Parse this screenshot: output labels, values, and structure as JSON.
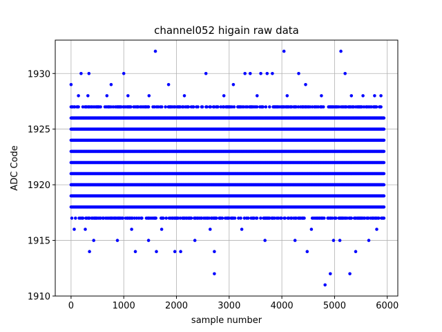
{
  "chart_data": {
    "type": "scatter",
    "title": "channel052 higain raw data",
    "xlabel": "sample number",
    "ylabel": "ADC Code",
    "xlim": [
      -300,
      6200
    ],
    "ylim": [
      1910,
      1933
    ],
    "xticks": [
      0,
      1000,
      2000,
      3000,
      4000,
      5000,
      6000
    ],
    "yticks": [
      1910,
      1915,
      1920,
      1925,
      1930
    ],
    "grid": true,
    "marker_color": "#0000ff",
    "series": [
      {
        "n_samples": 5940,
        "dense_levels": [
          1918,
          1919,
          1920,
          1921,
          1922,
          1923,
          1924,
          1925,
          1926
        ],
        "medium_levels": [
          1917,
          1927
        ],
        "sparse_points": [
          [
            0,
            1929
          ],
          [
            140,
            1928
          ],
          [
            190,
            1930
          ],
          [
            340,
            1930
          ],
          [
            760,
            1929
          ],
          [
            1000,
            1930
          ],
          [
            1220,
            1914
          ],
          [
            1600,
            1932
          ],
          [
            1850,
            1929
          ],
          [
            1970,
            1914
          ],
          [
            2080,
            1914
          ],
          [
            2560,
            1930
          ],
          [
            2720,
            1912
          ],
          [
            2720,
            1914
          ],
          [
            3300,
            1930
          ],
          [
            3400,
            1930
          ],
          [
            3600,
            1930
          ],
          [
            3720,
            1930
          ],
          [
            3820,
            1930
          ],
          [
            4040,
            1932
          ],
          [
            4320,
            1930
          ],
          [
            4480,
            1914
          ],
          [
            4820,
            1911
          ],
          [
            4920,
            1912
          ],
          [
            5120,
            1932
          ],
          [
            5200,
            1930
          ],
          [
            5290,
            1912
          ],
          [
            5400,
            1914
          ],
          [
            350,
            1914
          ],
          [
            1620,
            1914
          ],
          [
            60,
            1916
          ],
          [
            270,
            1916
          ],
          [
            430,
            1915
          ],
          [
            880,
            1915
          ],
          [
            1150,
            1916
          ],
          [
            1470,
            1915
          ],
          [
            1720,
            1916
          ],
          [
            2350,
            1915
          ],
          [
            2640,
            1916
          ],
          [
            3240,
            1916
          ],
          [
            3680,
            1915
          ],
          [
            4250,
            1915
          ],
          [
            4560,
            1916
          ],
          [
            4980,
            1915
          ],
          [
            5100,
            1915
          ],
          [
            5650,
            1915
          ],
          [
            5800,
            1916
          ],
          [
            5890,
            1917
          ],
          [
            320,
            1928
          ],
          [
            680,
            1928
          ],
          [
            1080,
            1928
          ],
          [
            1480,
            1928
          ],
          [
            2150,
            1928
          ],
          [
            2900,
            1928
          ],
          [
            3080,
            1929
          ],
          [
            3530,
            1928
          ],
          [
            4100,
            1928
          ],
          [
            4450,
            1929
          ],
          [
            4750,
            1928
          ],
          [
            5320,
            1928
          ],
          [
            5540,
            1928
          ],
          [
            5760,
            1928
          ],
          [
            5880,
            1928
          ]
        ]
      }
    ]
  }
}
